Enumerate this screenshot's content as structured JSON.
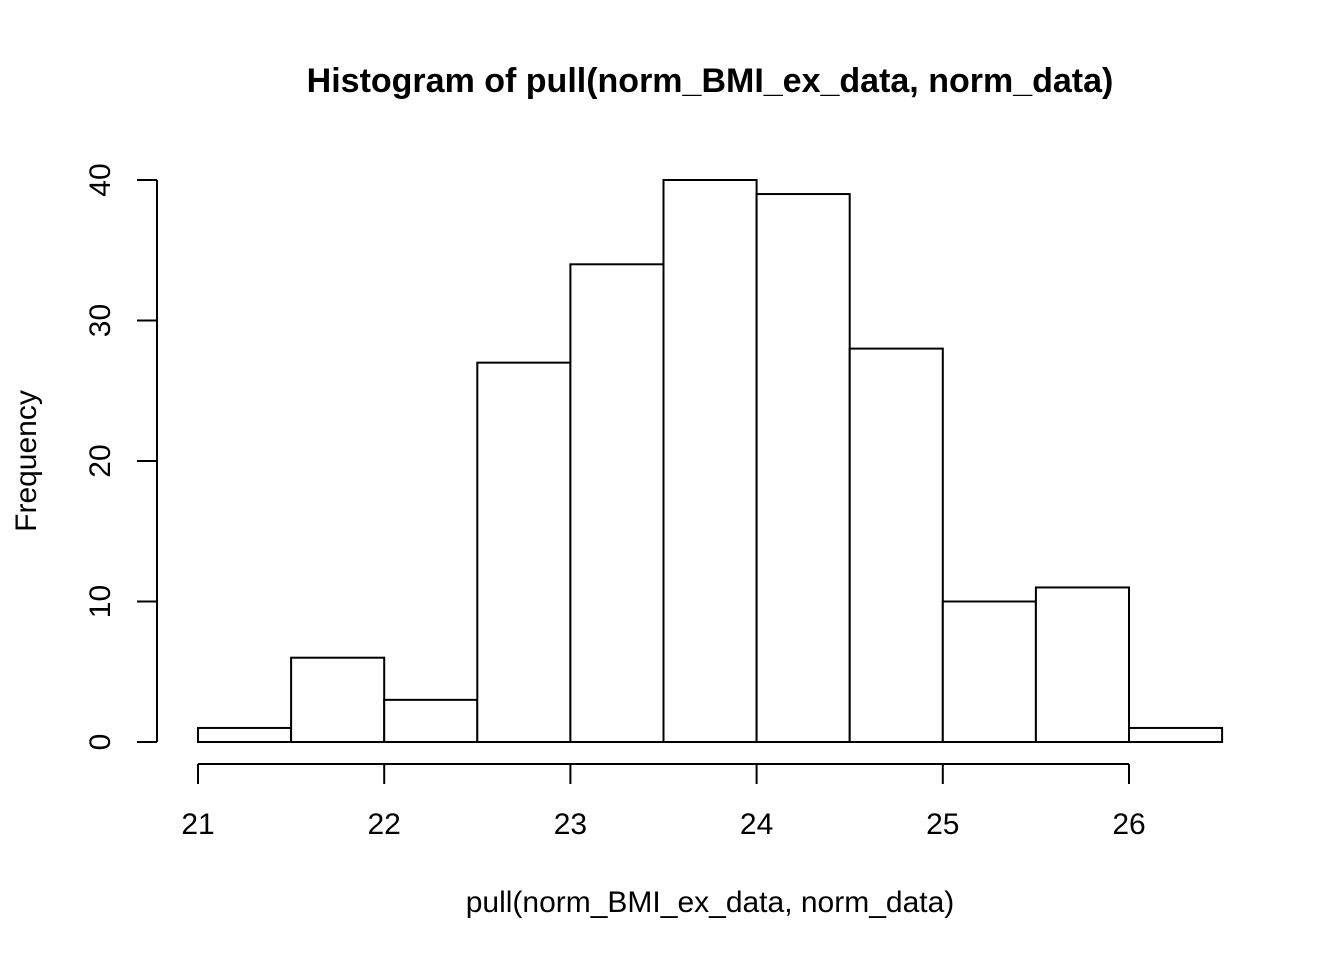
{
  "chart_data": {
    "type": "bar",
    "title": "Histogram of pull(norm_BMI_ex_data, norm_data)",
    "xlabel": "pull(norm_BMI_ex_data, norm_data)",
    "ylabel": "Frequency",
    "bin_edges": [
      21,
      21.5,
      22,
      22.5,
      23,
      23.5,
      24,
      24.5,
      25,
      25.5,
      26,
      26.5
    ],
    "values": [
      1,
      6,
      3,
      27,
      34,
      40,
      39,
      28,
      10,
      11,
      1
    ],
    "x_ticks": [
      21,
      22,
      23,
      24,
      25,
      26
    ],
    "y_ticks": [
      0,
      10,
      20,
      30,
      40
    ],
    "xlim": [
      21,
      26
    ],
    "ylim": [
      0,
      40
    ],
    "grid": false,
    "colors": {
      "fill": "#ffffff",
      "stroke": "#000000"
    }
  }
}
